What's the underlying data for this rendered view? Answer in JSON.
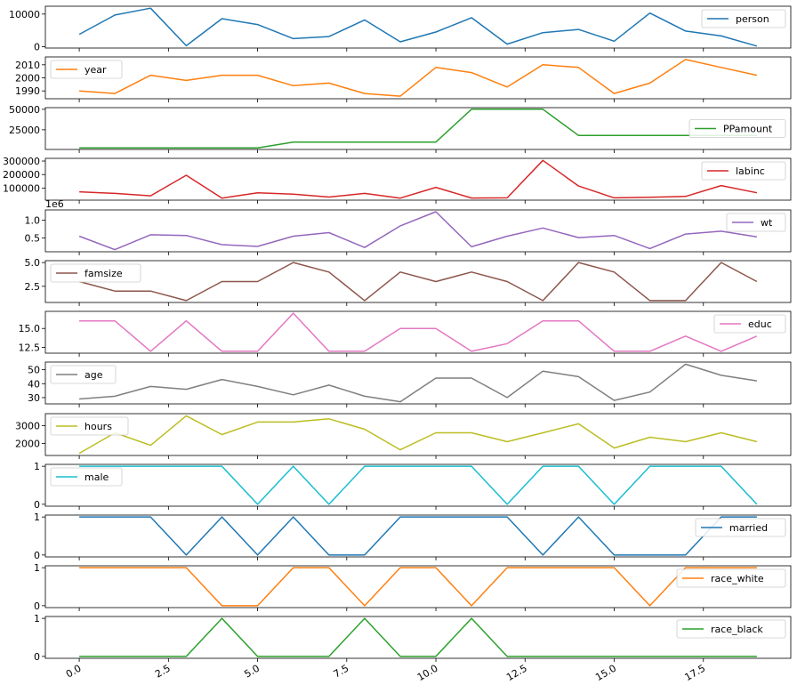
{
  "chart_data": {
    "type": "line",
    "layout": "stacked-subplots",
    "x": [
      0,
      1,
      2,
      3,
      4,
      5,
      6,
      7,
      8,
      9,
      10,
      11,
      12,
      13,
      14,
      15,
      16,
      17,
      18,
      19
    ],
    "x_tick_values": [
      0.0,
      2.5,
      5.0,
      7.5,
      10.0,
      12.5,
      15.0,
      17.5
    ],
    "x_tick_labels": [
      "0.0",
      "2.5",
      "5.0",
      "7.5",
      "10.0",
      "12.5",
      "15.0",
      "17.5"
    ],
    "xlim": [
      -0.95,
      19.95
    ],
    "panels": [
      {
        "name": "person",
        "color": "#1f77b4",
        "legend_loc": "upper-right",
        "values": [
          3800,
          9700,
          11800,
          300,
          8600,
          6800,
          2500,
          3100,
          8200,
          1500,
          4500,
          8900,
          800,
          4300,
          5300,
          1700,
          10300,
          4800,
          3300,
          200
        ],
        "ylim": [
          -400,
          12400
        ],
        "yticks": [
          0,
          10000
        ],
        "ytick_labels": [
          "0",
          "10000"
        ],
        "offset": ""
      },
      {
        "name": "year",
        "color": "#ff7f0e",
        "legend_loc": "upper-left",
        "values": [
          1990,
          1988,
          2002,
          1998,
          2002,
          2002,
          1994,
          1996,
          1988,
          1986,
          2008,
          2004,
          1993,
          2010,
          2008,
          1988,
          1996,
          2014,
          2008,
          2002
        ],
        "ylim": [
          1984,
          2016
        ],
        "yticks": [
          1990,
          2000,
          2010
        ],
        "ytick_labels": [
          "1990",
          "2000",
          "2010"
        ],
        "offset": ""
      },
      {
        "name": "PPamount",
        "color": "#2ca02c",
        "legend_loc": "center-right",
        "values": [
          3000,
          3000,
          3000,
          3000,
          3000,
          3000,
          10000,
          10000,
          10000,
          10000,
          10000,
          50000,
          50000,
          50000,
          18000,
          18000,
          18000,
          18000,
          18000,
          18000
        ],
        "ylim": [
          1000,
          52000
        ],
        "yticks": [
          25000,
          50000
        ],
        "ytick_labels": [
          "25000",
          "50000"
        ],
        "offset": ""
      },
      {
        "name": "labinc",
        "color": "#d62728",
        "legend_loc": "upper-right",
        "values": [
          72000,
          60000,
          42000,
          195000,
          25000,
          65000,
          55000,
          33000,
          60000,
          25000,
          105000,
          26000,
          27000,
          305000,
          115000,
          27000,
          32000,
          38000,
          118000,
          65000
        ],
        "ylim": [
          10000,
          320000
        ],
        "yticks": [
          100000,
          200000,
          300000
        ],
        "ytick_labels": [
          "100000",
          "200000",
          "300000"
        ],
        "offset": ""
      },
      {
        "name": "wt",
        "color": "#9467bd",
        "legend_loc": "upper-right",
        "values": [
          550000,
          170000,
          590000,
          570000,
          310000,
          260000,
          550000,
          650000,
          230000,
          840000,
          1240000,
          250000,
          550000,
          780000,
          510000,
          570000,
          200000,
          610000,
          690000,
          530000
        ],
        "ylim": [
          110000,
          1290000
        ],
        "yticks": [
          500000,
          1000000
        ],
        "ytick_labels": [
          "0.5",
          "1.0"
        ],
        "offset": "1e6"
      },
      {
        "name": "famsize",
        "color": "#8c564b",
        "legend_loc": "upper-left",
        "values": [
          3,
          2,
          2,
          1,
          3,
          3,
          5,
          4,
          1,
          4,
          3,
          4,
          3,
          1,
          5,
          4,
          1,
          1,
          5,
          3
        ],
        "ylim": [
          0.8,
          5.2
        ],
        "yticks": [
          2.5,
          5.0
        ],
        "ytick_labels": [
          "2.5",
          "5.0"
        ],
        "offset": ""
      },
      {
        "name": "educ",
        "color": "#e377c2",
        "legend_loc": "upper-right",
        "values": [
          16,
          16,
          12,
          16,
          12,
          12,
          17,
          12,
          12,
          15,
          15,
          12,
          13,
          16,
          16,
          12,
          12,
          14,
          12,
          14
        ],
        "ylim": [
          11.75,
          17.25
        ],
        "yticks": [
          12.5,
          15.0
        ],
        "ytick_labels": [
          "12.5",
          "15.0"
        ],
        "offset": ""
      },
      {
        "name": "age",
        "color": "#7f7f7f",
        "legend_loc": "upper-left",
        "values": [
          29,
          31,
          38,
          36,
          43,
          38,
          32,
          39,
          31,
          27,
          44,
          44,
          30,
          49,
          45,
          28,
          34,
          54,
          46,
          42
        ],
        "ylim": [
          25.5,
          55.5
        ],
        "yticks": [
          30,
          40,
          50
        ],
        "ytick_labels": [
          "30",
          "40",
          "50"
        ],
        "offset": ""
      },
      {
        "name": "hours",
        "color": "#bcbd22",
        "legend_loc": "upper-left",
        "values": [
          1450,
          2600,
          1900,
          3550,
          2500,
          3200,
          3200,
          3380,
          2800,
          1650,
          2600,
          2600,
          2100,
          2600,
          3100,
          1750,
          2350,
          2100,
          2600,
          2100
        ],
        "ylim": [
          1330,
          3670
        ],
        "yticks": [
          2000,
          3000
        ],
        "ytick_labels": [
          "2000",
          "3000"
        ],
        "offset": ""
      },
      {
        "name": "male",
        "color": "#17becf",
        "legend_loc": "upper-left",
        "values": [
          1,
          1,
          1,
          1,
          1,
          0,
          1,
          0,
          1,
          1,
          1,
          1,
          0,
          1,
          1,
          0,
          1,
          1,
          1,
          0
        ],
        "ylim": [
          -0.05,
          1.05
        ],
        "yticks": [
          0,
          1
        ],
        "ytick_labels": [
          "0",
          "1"
        ],
        "offset": ""
      },
      {
        "name": "married",
        "color": "#1f77b4",
        "legend_loc": "upper-right",
        "values": [
          1,
          1,
          1,
          0,
          1,
          0,
          1,
          0,
          0,
          1,
          1,
          1,
          1,
          0,
          1,
          0,
          0,
          0,
          1,
          1
        ],
        "ylim": [
          -0.05,
          1.05
        ],
        "yticks": [
          0,
          1
        ],
        "ytick_labels": [
          "0",
          "1"
        ],
        "offset": ""
      },
      {
        "name": "race_white",
        "color": "#ff7f0e",
        "legend_loc": "upper-right",
        "values": [
          1,
          1,
          1,
          1,
          0,
          0,
          1,
          1,
          0,
          1,
          1,
          0,
          1,
          1,
          1,
          1,
          0,
          1,
          1,
          1
        ],
        "ylim": [
          -0.05,
          1.05
        ],
        "yticks": [
          0,
          1
        ],
        "ytick_labels": [
          "0",
          "1"
        ],
        "offset": ""
      },
      {
        "name": "race_black",
        "color": "#2ca02c",
        "legend_loc": "upper-right",
        "values": [
          0,
          0,
          0,
          0,
          1,
          0,
          0,
          0,
          1,
          0,
          0,
          1,
          0,
          0,
          0,
          0,
          0,
          0,
          0,
          0
        ],
        "ylim": [
          -0.05,
          1.05
        ],
        "yticks": [
          0,
          1
        ],
        "ytick_labels": [
          "0",
          "1"
        ],
        "offset": ""
      }
    ],
    "title": "",
    "xlabel": "",
    "ylabel": "",
    "grid": false
  }
}
